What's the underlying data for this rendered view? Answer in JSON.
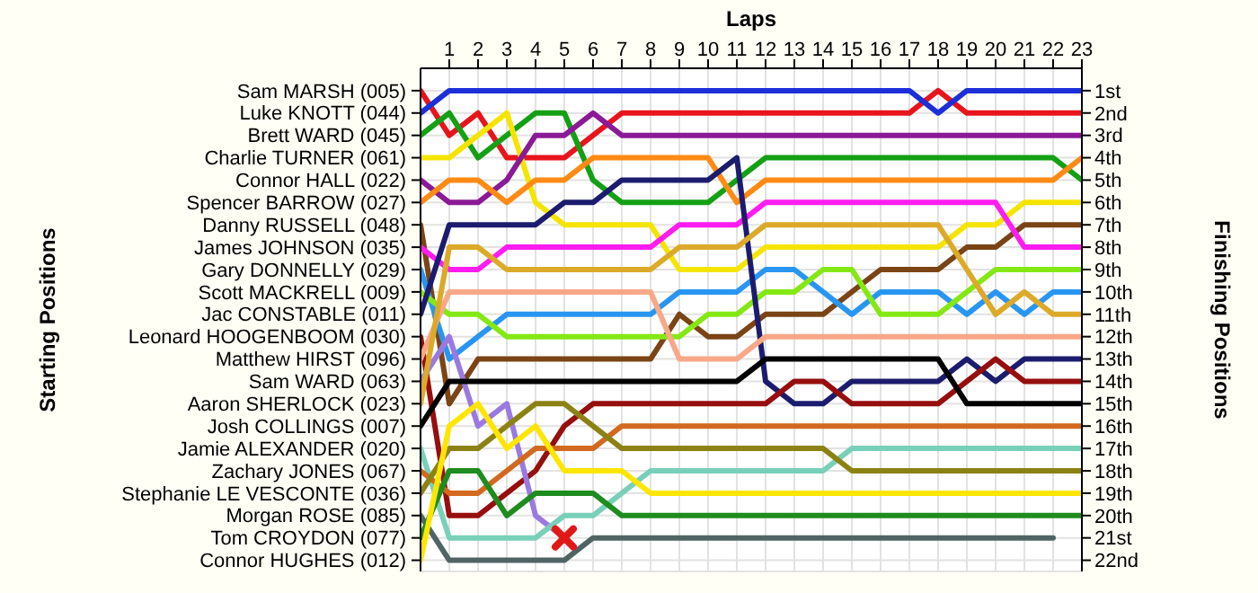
{
  "chart_data": {
    "type": "line",
    "xlabel": "Laps",
    "ylabel": "Finishing Positions",
    "x": [
      0,
      1,
      2,
      3,
      4,
      5,
      6,
      7,
      8,
      9,
      10,
      11,
      12,
      13,
      14,
      15,
      16,
      17,
      18,
      19,
      20,
      21,
      22,
      23
    ],
    "xlim": [
      0,
      23
    ],
    "xticks": [
      1,
      2,
      3,
      4,
      5,
      6,
      7,
      8,
      9,
      10,
      11,
      12,
      13,
      14,
      15,
      16,
      17,
      18,
      19,
      20,
      21,
      22,
      23
    ],
    "ylim": [
      22.5,
      0
    ],
    "yticks": [
      {
        "value": 1,
        "label": "1st"
      },
      {
        "value": 2,
        "label": "2nd"
      },
      {
        "value": 3,
        "label": "3rd"
      },
      {
        "value": 4,
        "label": "4th"
      },
      {
        "value": 5,
        "label": "5th"
      },
      {
        "value": 6,
        "label": "6th"
      },
      {
        "value": 7,
        "label": "7th"
      },
      {
        "value": 8,
        "label": "8th"
      },
      {
        "value": 9,
        "label": "9th"
      },
      {
        "value": 10,
        "label": "10th"
      },
      {
        "value": 11,
        "label": "11th"
      },
      {
        "value": 12,
        "label": "12th"
      },
      {
        "value": 13,
        "label": "13th"
      },
      {
        "value": 14,
        "label": "14th"
      },
      {
        "value": 15,
        "label": "15th"
      },
      {
        "value": 16,
        "label": "16th"
      },
      {
        "value": 17,
        "label": "17th"
      },
      {
        "value": 18,
        "label": "18th"
      },
      {
        "value": 19,
        "label": "19th"
      },
      {
        "value": 20,
        "label": "20th"
      },
      {
        "value": 21,
        "label": "21st"
      },
      {
        "value": 22,
        "label": "22nd"
      }
    ],
    "grid": true,
    "annotations": [
      "Starting Positions",
      "Sam MARSH (005)",
      "Luke KNOTT (044)",
      "Brett WARD (045)",
      "Charlie TURNER (061)",
      "Connor HALL (022)",
      "Spencer BARROW (027)",
      "Danny RUSSELL (048)",
      "James JOHNSON (035)",
      "Gary DONNELLY (029)",
      "Scott MACKRELL (009)",
      "Jac CONSTABLE (011)",
      "Leonard HOOGENBOOM (030)",
      "Matthew HIRST (096)",
      "Sam WARD (063)",
      "Aaron SHERLOCK (023)",
      "Josh COLLINGS (007)",
      "Jamie ALEXANDER (020)",
      "Zachary JONES (067)",
      "Stephanie LE VESCONTE (036)",
      "Morgan ROSE (085)",
      "Tom CROYDON (077)",
      "Connor HUGHES (012)"
    ],
    "series": [
      {
        "color": "#e8141c",
        "values": [
          1,
          3,
          2,
          4,
          4,
          4,
          3,
          2,
          2,
          2,
          2,
          2,
          2,
          2,
          2,
          2,
          2,
          2,
          1,
          2,
          2,
          2,
          2,
          2
        ]
      },
      {
        "color": "#1c2fd8",
        "values": [
          2,
          1,
          1,
          1,
          1,
          1,
          1,
          1,
          1,
          1,
          1,
          1,
          1,
          1,
          1,
          1,
          1,
          1,
          2,
          1,
          1,
          1,
          1,
          1
        ]
      },
      {
        "color": "#14a014",
        "values": [
          3,
          2,
          4,
          3,
          2,
          2,
          5,
          6,
          6,
          6,
          6,
          5,
          4,
          4,
          4,
          4,
          4,
          4,
          4,
          4,
          4,
          4,
          4,
          5
        ]
      },
      {
        "color": "#f5e400",
        "values": [
          4,
          4,
          3,
          2,
          6,
          7,
          7,
          7,
          7,
          9,
          9,
          9,
          8,
          8,
          8,
          8,
          8,
          8,
          8,
          7,
          7,
          6,
          6,
          6
        ]
      },
      {
        "color": "#8a1a96",
        "values": [
          5,
          6,
          6,
          5,
          3,
          3,
          2,
          3,
          3,
          3,
          3,
          3,
          3,
          3,
          3,
          3,
          3,
          3,
          3,
          3,
          3,
          3,
          3,
          3
        ]
      },
      {
        "color": "#ff8a14",
        "values": [
          6,
          5,
          5,
          6,
          5,
          5,
          4,
          4,
          4,
          4,
          4,
          6,
          5,
          5,
          5,
          5,
          5,
          5,
          5,
          5,
          5,
          5,
          5,
          4
        ]
      },
      {
        "color": "#7a4414",
        "values": [
          7,
          15,
          13,
          13,
          13,
          13,
          13,
          13,
          13,
          11,
          12,
          12,
          11,
          11,
          11,
          10,
          9,
          9,
          9,
          8,
          8,
          7,
          7,
          7
        ]
      },
      {
        "color": "#ff1cf0",
        "values": [
          8,
          9,
          9,
          8,
          8,
          8,
          8,
          8,
          8,
          7,
          7,
          7,
          6,
          6,
          6,
          6,
          6,
          6,
          6,
          6,
          6,
          8,
          8,
          8
        ]
      },
      {
        "color": "#2896f0",
        "values": [
          9,
          13,
          12,
          11,
          11,
          11,
          11,
          11,
          11,
          10,
          10,
          10,
          9,
          9,
          10,
          11,
          10,
          10,
          10,
          11,
          10,
          11,
          10,
          10
        ]
      },
      {
        "color": "#84e814",
        "values": [
          10,
          11,
          11,
          12,
          12,
          12,
          12,
          12,
          12,
          12,
          11,
          11,
          10,
          10,
          9,
          9,
          11,
          11,
          11,
          10,
          9,
          9,
          9,
          9
        ]
      },
      {
        "color": "#1c1c6e",
        "values": [
          11,
          7,
          7,
          7,
          7,
          6,
          6,
          5,
          5,
          5,
          5,
          4,
          14,
          15,
          15,
          14,
          14,
          14,
          14,
          13,
          14,
          13,
          13,
          13
        ]
      },
      {
        "color": "#960e0e",
        "values": [
          12,
          20,
          20,
          19,
          18,
          16,
          15,
          15,
          15,
          15,
          15,
          15,
          15,
          14,
          14,
          15,
          15,
          15,
          15,
          14,
          13,
          14,
          14,
          14
        ]
      },
      {
        "color": "#f8a888",
        "values": [
          13,
          10,
          10,
          10,
          10,
          10,
          10,
          10,
          10,
          13,
          13,
          13,
          12,
          12,
          12,
          12,
          12,
          12,
          12,
          12,
          12,
          12,
          12,
          12
        ]
      },
      {
        "color": "#9a7ae0",
        "values": [
          14,
          12,
          16,
          15,
          20,
          21,
          null,
          null,
          null,
          null,
          null,
          null,
          null,
          null,
          null,
          null,
          null,
          null,
          null,
          null,
          null,
          null,
          null,
          null
        ]
      },
      {
        "color": "#dcaa28",
        "values": [
          15,
          8,
          8,
          9,
          9,
          9,
          9,
          9,
          9,
          8,
          8,
          8,
          7,
          7,
          7,
          7,
          7,
          7,
          7,
          9,
          11,
          10,
          11,
          11
        ]
      },
      {
        "color": "#000000",
        "values": [
          16,
          14,
          14,
          14,
          14,
          14,
          14,
          14,
          14,
          14,
          14,
          14,
          13,
          13,
          13,
          13,
          13,
          13,
          13,
          15,
          15,
          15,
          15,
          15
        ]
      },
      {
        "color": "#78d0b8",
        "values": [
          17,
          21,
          21,
          21,
          21,
          20,
          20,
          19,
          18,
          18,
          18,
          18,
          18,
          18,
          18,
          17,
          17,
          17,
          17,
          17,
          17,
          17,
          17,
          17
        ]
      },
      {
        "color": "#d2691e",
        "values": [
          18,
          19,
          19,
          18,
          17,
          17,
          17,
          16,
          16,
          16,
          16,
          16,
          16,
          16,
          16,
          16,
          16,
          16,
          16,
          16,
          16,
          16,
          16,
          16
        ]
      },
      {
        "color": "#8c8214",
        "values": [
          19,
          17,
          17,
          16,
          15,
          15,
          16,
          17,
          17,
          17,
          17,
          17,
          17,
          17,
          17,
          18,
          18,
          18,
          18,
          18,
          18,
          18,
          18,
          18
        ]
      },
      {
        "color": "#506464",
        "values": [
          20,
          22,
          22,
          22,
          22,
          22,
          21,
          21,
          21,
          21,
          21,
          21,
          21,
          21,
          21,
          21,
          21,
          21,
          21,
          21,
          21,
          21,
          21,
          null
        ]
      },
      {
        "color": "#1e8c1e",
        "values": [
          21,
          18,
          18,
          20,
          19,
          19,
          19,
          20,
          20,
          20,
          20,
          20,
          20,
          20,
          20,
          20,
          20,
          20,
          20,
          20,
          20,
          20,
          20,
          20
        ]
      },
      {
        "color": "#ffe600",
        "values": [
          22,
          16,
          15,
          17,
          16,
          18,
          18,
          18,
          19,
          19,
          19,
          19,
          19,
          19,
          19,
          19,
          19,
          19,
          19,
          19,
          19,
          19,
          19,
          19
        ]
      }
    ]
  }
}
